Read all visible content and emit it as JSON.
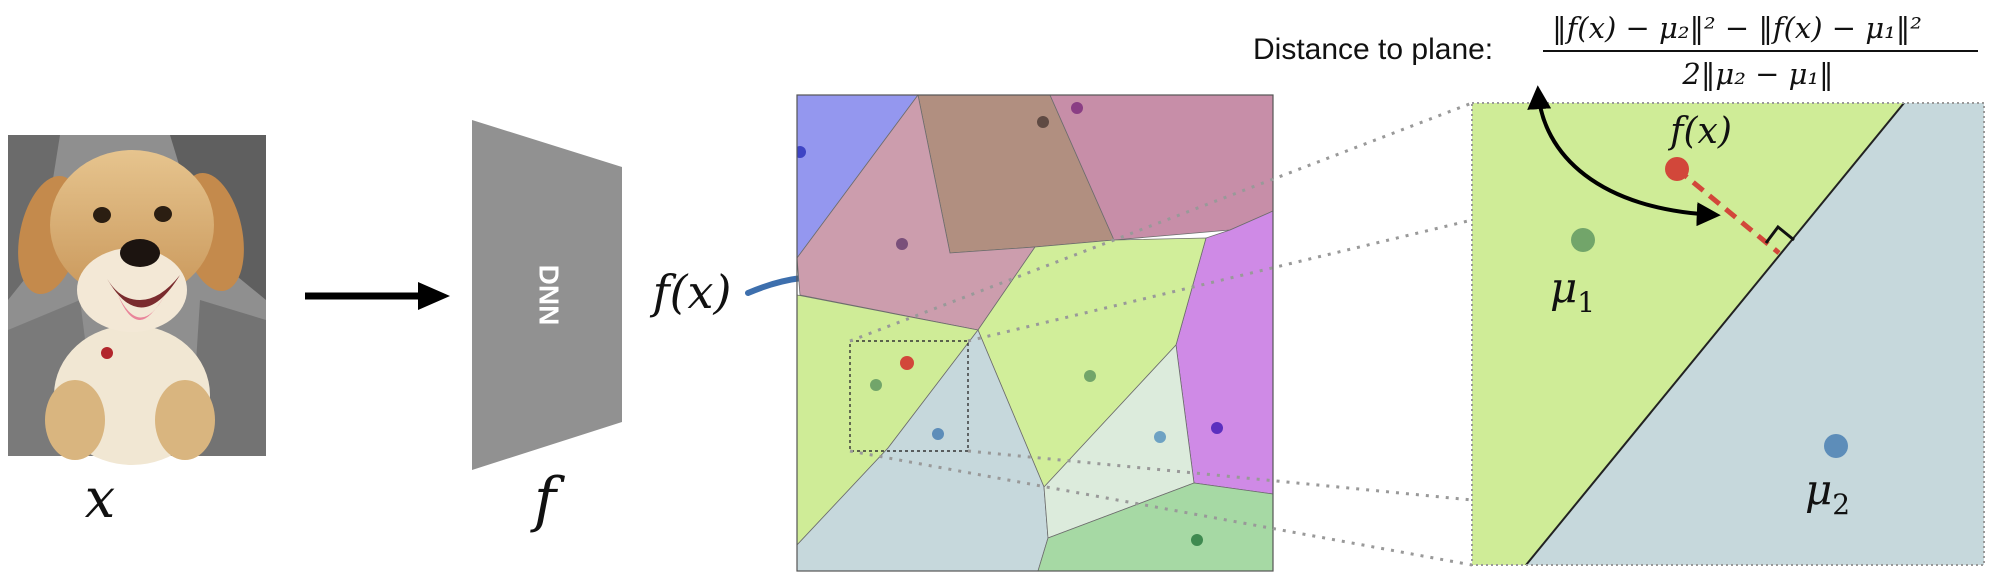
{
  "input": {
    "photo": "golden-retriever-puppy-photo",
    "label": "x"
  },
  "network": {
    "block_label": "DNN",
    "label": "f"
  },
  "embedding": {
    "label": "f(x)"
  },
  "zoom": {
    "fx_label": "f(x)",
    "mu1_label": "μ",
    "mu1_sub": "1",
    "mu2_label": "μ",
    "mu2_sub": "2"
  },
  "formula": {
    "prefix": "Distance to plane:",
    "numerator": "‖f(x) − μ₂‖² − ‖f(x) − μ₁‖²",
    "denominator": "2‖μ₂ − μ₁‖"
  },
  "colors": {
    "arrow": "#000000",
    "dnn": "#919191",
    "embedding_curve": "#3d6fad",
    "point_fx": "#d2473a",
    "region_green": "#cfec97",
    "region_gray": "#c6d8dc",
    "mu1": "#72a56a",
    "mu2": "#5d8db9",
    "dashed_zoom": "#999999"
  }
}
